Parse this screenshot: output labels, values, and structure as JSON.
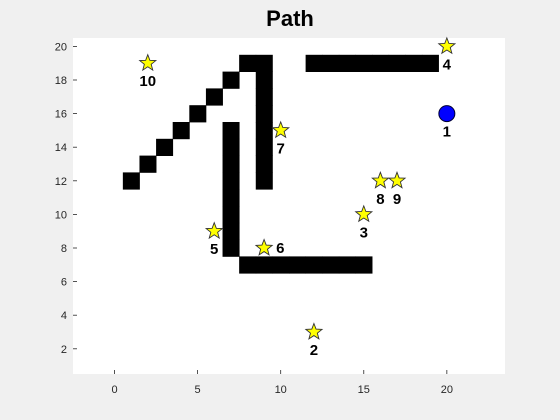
{
  "chart_data": {
    "type": "scatter",
    "title": "Path",
    "xlabel": "",
    "ylabel": "",
    "xlim": [
      -2.5,
      23.5
    ],
    "ylim": [
      0.5,
      20.5
    ],
    "xticks": [
      0,
      5,
      10,
      15,
      20
    ],
    "yticks": [
      2,
      4,
      6,
      8,
      10,
      12,
      14,
      16,
      18,
      20
    ],
    "grid": false,
    "colors": {
      "obstacle": "#000000",
      "star": "#ffff00",
      "star_stroke": "#333333",
      "start": "#0000ff",
      "start_stroke": "#000033",
      "axes_bg": "#ffffff",
      "figure_bg": "#f0f0f0"
    },
    "obstacles": [
      {
        "x": 1,
        "y": 12
      },
      {
        "x": 2,
        "y": 13
      },
      {
        "x": 3,
        "y": 14
      },
      {
        "x": 4,
        "y": 15
      },
      {
        "x": 5,
        "y": 16
      },
      {
        "x": 6,
        "y": 17
      },
      {
        "x": 7,
        "y": 18
      },
      {
        "x": 8,
        "y": 19
      },
      {
        "x": 9,
        "y": 19
      },
      {
        "x": 9,
        "y": 18
      },
      {
        "x": 9,
        "y": 17
      },
      {
        "x": 9,
        "y": 16
      },
      {
        "x": 9,
        "y": 15
      },
      {
        "x": 9,
        "y": 14
      },
      {
        "x": 9,
        "y": 13
      },
      {
        "x": 9,
        "y": 12
      },
      {
        "x": 7,
        "y": 15
      },
      {
        "x": 7,
        "y": 14
      },
      {
        "x": 7,
        "y": 13
      },
      {
        "x": 7,
        "y": 12
      },
      {
        "x": 7,
        "y": 11
      },
      {
        "x": 7,
        "y": 10
      },
      {
        "x": 7,
        "y": 9
      },
      {
        "x": 7,
        "y": 8
      },
      {
        "x": 8,
        "y": 7
      },
      {
        "x": 9,
        "y": 7
      },
      {
        "x": 10,
        "y": 7
      },
      {
        "x": 11,
        "y": 7
      },
      {
        "x": 12,
        "y": 7
      },
      {
        "x": 13,
        "y": 7
      },
      {
        "x": 14,
        "y": 7
      },
      {
        "x": 15,
        "y": 7
      },
      {
        "x": 12,
        "y": 19
      },
      {
        "x": 13,
        "y": 19
      },
      {
        "x": 14,
        "y": 19
      },
      {
        "x": 15,
        "y": 19
      },
      {
        "x": 16,
        "y": 19
      },
      {
        "x": 17,
        "y": 19
      },
      {
        "x": 18,
        "y": 19
      },
      {
        "x": 19,
        "y": 19
      }
    ],
    "start": {
      "x": 20,
      "y": 16,
      "label": "1"
    },
    "waypoints": [
      {
        "x": 12,
        "y": 3,
        "label": "2"
      },
      {
        "x": 15,
        "y": 10,
        "label": "3"
      },
      {
        "x": 20,
        "y": 20,
        "label": "4"
      },
      {
        "x": 6,
        "y": 9,
        "label": "5"
      },
      {
        "x": 9,
        "y": 8,
        "label": "6",
        "side": "right"
      },
      {
        "x": 10,
        "y": 15,
        "label": "7"
      },
      {
        "x": 16,
        "y": 12,
        "label": "8"
      },
      {
        "x": 17,
        "y": 12,
        "label": "9"
      },
      {
        "x": 2,
        "y": 19,
        "label": "10"
      }
    ]
  }
}
